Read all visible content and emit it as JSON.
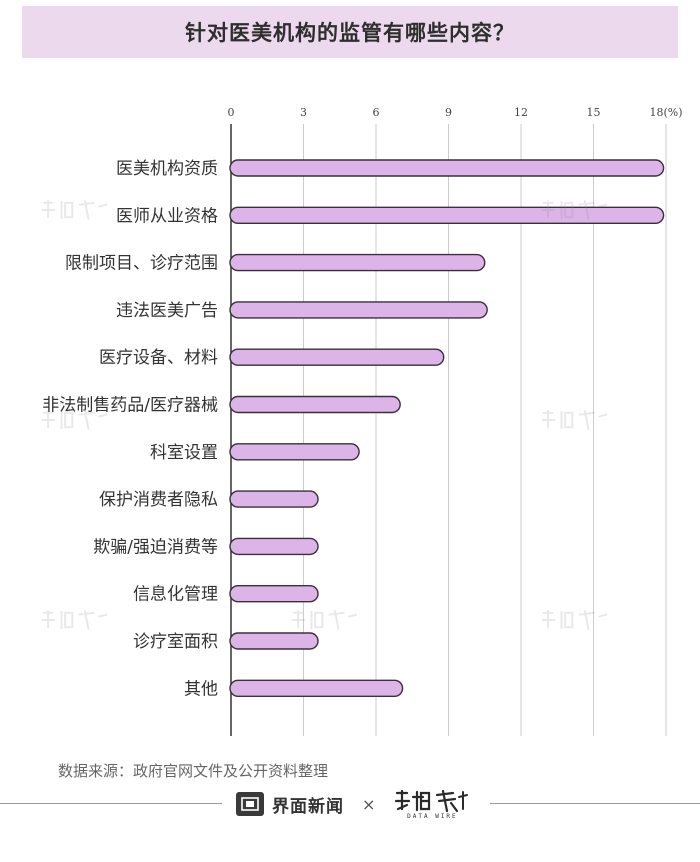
{
  "page": {
    "title": "针对医美机构的监管有哪些内容？",
    "source": "数据来源：政府官网文件及公开资料整理",
    "footer": {
      "brand_name": "界面新闻",
      "times_symbol": "×",
      "partner_logo_text": "数据线",
      "partner_sub_text": "DATA WIRE"
    }
  },
  "colors": {
    "bar_fill": "#dcb4e8",
    "bar_stroke": "#3a2f3c",
    "title_band": "#ecd9ee",
    "axis": "#333333",
    "grid": "#cccccc"
  },
  "chart_data": {
    "type": "bar",
    "orientation": "horizontal",
    "title": "针对医美机构的监管有哪些内容？",
    "xlabel": "",
    "ylabel": "",
    "x_unit": "(%)",
    "xlim": [
      0,
      18
    ],
    "xticks": [
      0,
      3,
      6,
      9,
      12,
      15,
      18
    ],
    "grid": true,
    "legend": "none",
    "categories": [
      "医美机构资质",
      "医师从业资格",
      "限制项目、诊疗范围",
      "违法医美广告",
      "医疗设备、材料",
      "非法制售药品/医疗器械",
      "科室设置",
      "保护消费者隐私",
      "欺骗/强迫消费等",
      "信息化管理",
      "诊疗室面积",
      "其他"
    ],
    "values": [
      17.9,
      17.9,
      10.5,
      10.6,
      8.8,
      7.0,
      5.3,
      3.6,
      3.6,
      3.6,
      3.6,
      7.1
    ]
  }
}
